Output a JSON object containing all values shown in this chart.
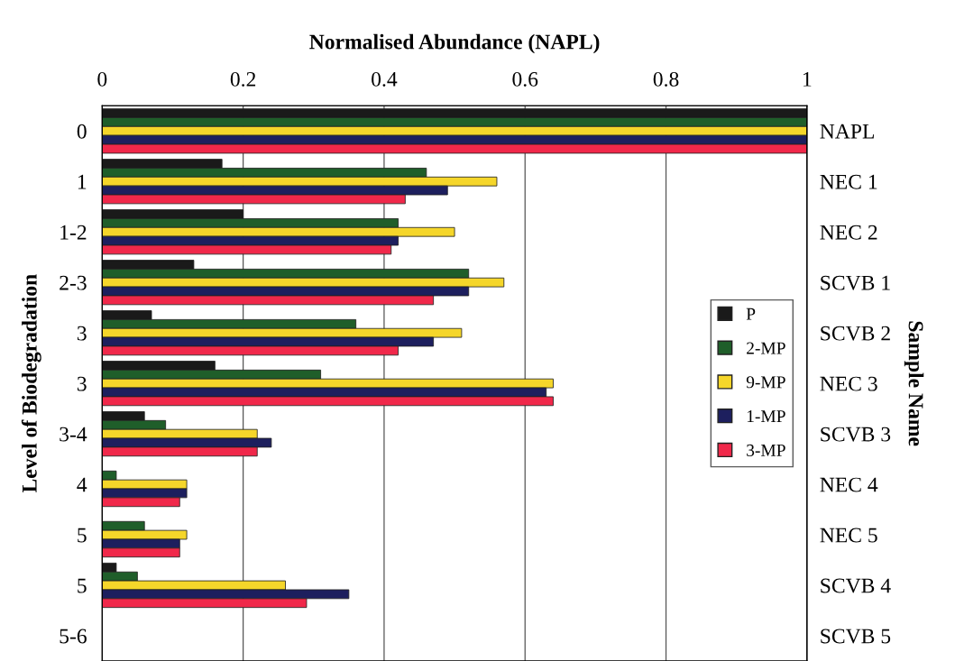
{
  "chart_data": {
    "type": "bar",
    "orientation": "horizontal",
    "xlabel": "Normalised Abundance (NAPL)",
    "ylabel": "Level of Biodegradation",
    "y2label": "Sample Name",
    "categories": [
      "0",
      "1",
      "1-2",
      "2-3",
      "3",
      "3",
      "3-4",
      "4",
      "5",
      "5",
      "5-6"
    ],
    "y2_categories": [
      "NAPL",
      "NEC 1",
      "NEC 2",
      "SCVB 1",
      "SCVB 2",
      "NEC 3",
      "SCVB 3",
      "NEC 4",
      "NEC 5",
      "SCVB 4",
      "SCVB 5"
    ],
    "xlim": [
      0,
      1
    ],
    "xticks": [
      0,
      0.2,
      0.4,
      0.6,
      0.8,
      1
    ],
    "grid": "x",
    "legend": "right",
    "series": [
      {
        "name": "P",
        "color": "#1a1a1a",
        "values": [
          1,
          0.17,
          0.2,
          0.13,
          0.07,
          0.16,
          0.06,
          null,
          null,
          0.02,
          null
        ]
      },
      {
        "name": "2-MP",
        "color": "#1f5e2a",
        "values": [
          1,
          0.46,
          0.42,
          0.52,
          0.36,
          0.31,
          0.09,
          0.02,
          0.06,
          0.05,
          null
        ]
      },
      {
        "name": "9-MP",
        "color": "#f5d62a",
        "values": [
          1,
          0.56,
          0.5,
          0.57,
          0.51,
          0.64,
          0.22,
          0.12,
          0.12,
          0.26,
          null
        ]
      },
      {
        "name": "1-MP",
        "color": "#1d1f5e",
        "values": [
          1,
          0.49,
          0.42,
          0.52,
          0.47,
          0.63,
          0.24,
          0.12,
          0.11,
          0.35,
          null
        ]
      },
      {
        "name": "3-MP",
        "color": "#f0284a",
        "values": [
          1,
          0.43,
          0.41,
          0.47,
          0.42,
          0.64,
          0.22,
          0.11,
          0.11,
          0.29,
          null
        ]
      }
    ]
  }
}
